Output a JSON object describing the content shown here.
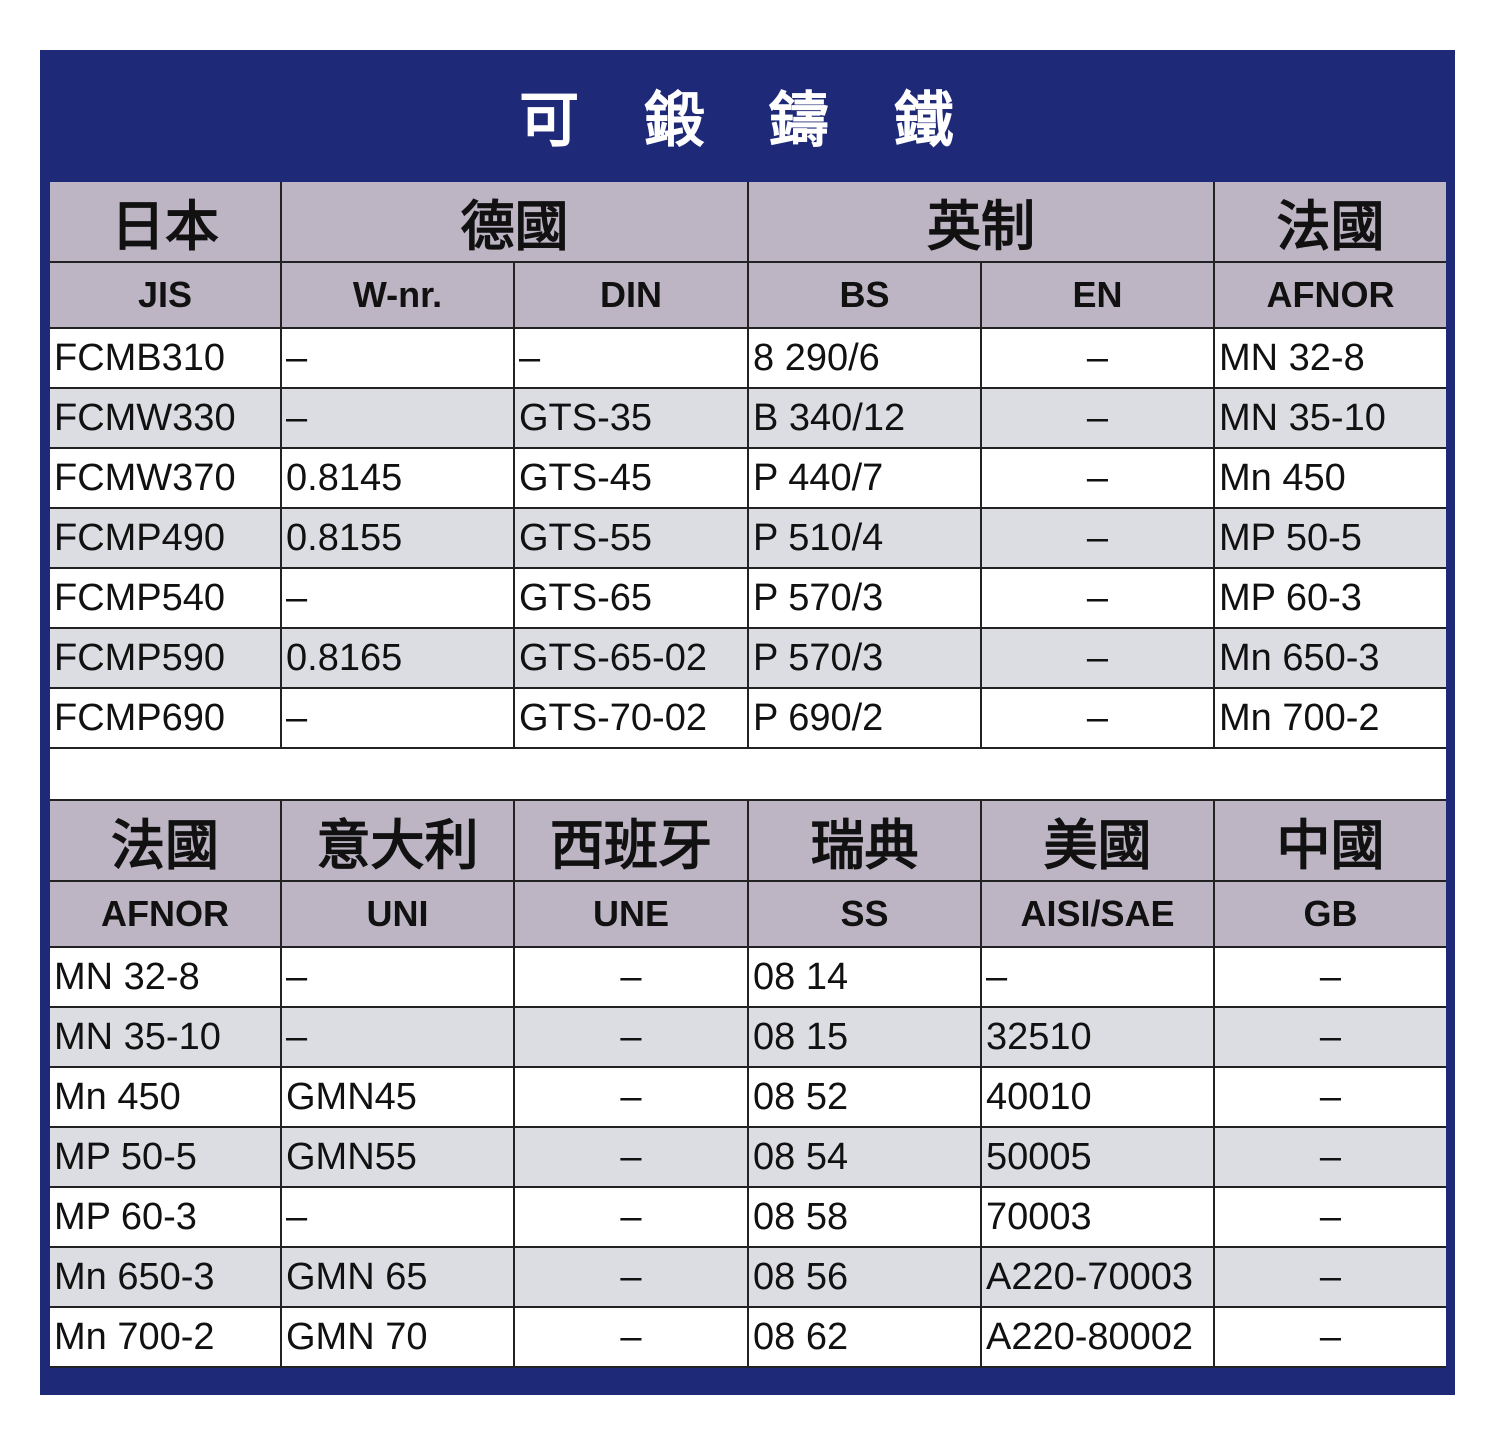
{
  "title": "可 鍛 鑄 鐵",
  "colors": {
    "frame": "#1e2a78",
    "header_bg": "#bdb5c3",
    "alt_row": "#dcdce3"
  },
  "tables": [
    {
      "countries": [
        {
          "label": "日本",
          "span": 1
        },
        {
          "label": "德國",
          "span": 2
        },
        {
          "label": "英制",
          "span": 2
        },
        {
          "label": "法國",
          "span": 1
        }
      ],
      "codes": [
        "JIS",
        "W-nr.",
        "DIN",
        "BS",
        "EN",
        "AFNOR"
      ],
      "centered_columns": [
        4
      ],
      "rows": [
        [
          "FCMB310",
          "–",
          "–",
          "8 290/6",
          "–",
          "MN 32-8"
        ],
        [
          "FCMW330",
          "–",
          "GTS-35",
          "B 340/12",
          "–",
          "MN 35-10"
        ],
        [
          "FCMW370",
          "0.8145",
          "GTS-45",
          "P 440/7",
          "–",
          "Mn 450"
        ],
        [
          "FCMP490",
          "0.8155",
          "GTS-55",
          "P 510/4",
          "–",
          "MP 50-5"
        ],
        [
          "FCMP540",
          "–",
          "GTS-65",
          "P 570/3",
          "–",
          "MP 60-3"
        ],
        [
          "FCMP590",
          "0.8165",
          "GTS-65-02",
          "P 570/3",
          "–",
          "Mn 650-3"
        ],
        [
          "FCMP690",
          "–",
          "GTS-70-02",
          "P 690/2",
          "–",
          "Mn 700-2"
        ]
      ]
    },
    {
      "countries": [
        {
          "label": "法國",
          "span": 1
        },
        {
          "label": "意大利",
          "span": 1
        },
        {
          "label": "西班牙",
          "span": 1
        },
        {
          "label": "瑞典",
          "span": 1
        },
        {
          "label": "美國",
          "span": 1
        },
        {
          "label": "中國",
          "span": 1
        }
      ],
      "codes": [
        "AFNOR",
        "UNI",
        "UNE",
        "SS",
        "AISI/SAE",
        "GB"
      ],
      "centered_columns": [
        2,
        5
      ],
      "rows": [
        [
          "MN 32-8",
          "–",
          "–",
          "08 14",
          "–",
          "–"
        ],
        [
          "MN 35-10",
          "–",
          "–",
          "08 15",
          "32510",
          "–"
        ],
        [
          "Mn 450",
          "GMN45",
          "–",
          "08 52",
          "40010",
          "–"
        ],
        [
          "MP 50-5",
          "GMN55",
          "–",
          "08 54",
          "50005",
          "–"
        ],
        [
          "MP 60-3",
          "–",
          "–",
          "08 58",
          "70003",
          "–"
        ],
        [
          "Mn 650-3",
          "GMN 65",
          "–",
          "08 56",
          "A220-70003",
          "–"
        ],
        [
          "Mn 700-2",
          "GMN 70",
          "–",
          "08 62",
          "A220-80002",
          "–"
        ]
      ]
    }
  ]
}
